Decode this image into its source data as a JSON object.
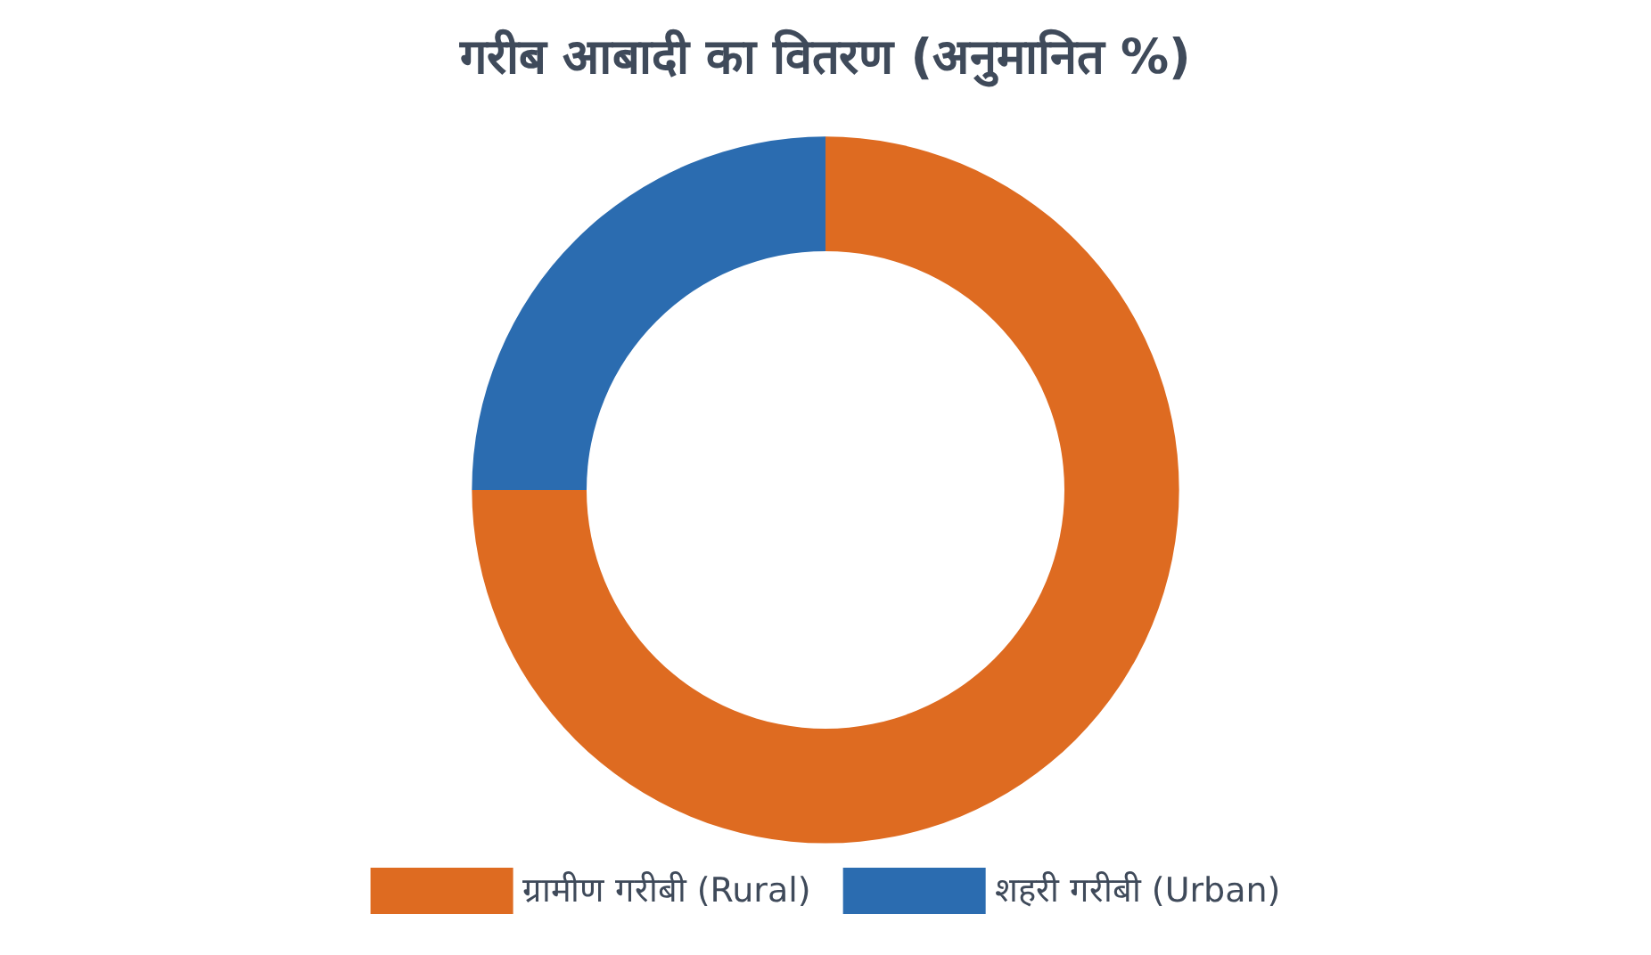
{
  "chart_data": {
    "type": "donut",
    "title": "गरीब आबादी का वितरण (अनुमानित %)",
    "categories": [
      "ग्रामीण गरीबी (Rural)",
      "शहरी गरीबी (Urban)"
    ],
    "values": [
      75,
      25
    ],
    "colors": [
      "#de6b21",
      "#2b6cb0"
    ],
    "legend": "bottom"
  }
}
